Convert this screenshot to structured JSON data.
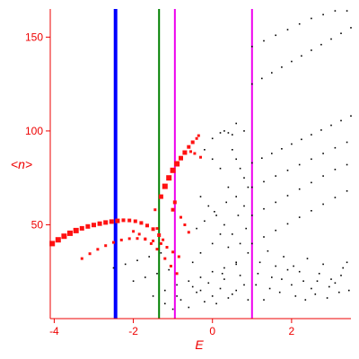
{
  "chart_data": {
    "type": "scatter",
    "title": "",
    "xlabel": "E",
    "ylabel": "<n>",
    "xlim": [
      -4.1,
      3.5
    ],
    "ylim": [
      0,
      165
    ],
    "xticks": [
      -4,
      -2,
      0,
      2
    ],
    "xtick_labels": [
      "-4",
      "-2",
      "0",
      "2"
    ],
    "yticks": [
      50,
      100,
      150
    ],
    "ytick_labels": [
      "50",
      "100",
      "150"
    ],
    "grid": false,
    "legend": "none",
    "colors": {
      "axes": "#ee0000",
      "black_points": "#000000",
      "red_points": "#ff1111"
    },
    "vertical_lines": [
      {
        "x": -2.45,
        "color": "#0000ff",
        "width": "thick"
      },
      {
        "x": -1.35,
        "color": "#008000",
        "width": "normal"
      },
      {
        "x": -0.95,
        "color": "#ee00ee",
        "width": "normal"
      },
      {
        "x": 1.0,
        "color": "#ee00ee",
        "width": "normal"
      }
    ],
    "series": [
      {
        "color": "#ff1111",
        "marker": "square",
        "points": [
          [
            -4.05,
            40.0,
            6
          ],
          [
            -3.9,
            42.0,
            6
          ],
          [
            -3.75,
            43.9,
            6
          ],
          [
            -3.6,
            45.5,
            6
          ],
          [
            -3.45,
            46.9,
            6
          ],
          [
            -3.3,
            48.1,
            5
          ],
          [
            -3.15,
            49.1,
            5
          ],
          [
            -3.0,
            49.9,
            5
          ],
          [
            -2.85,
            50.6,
            5
          ],
          [
            -2.7,
            51.2,
            5
          ],
          [
            -2.55,
            51.7,
            5
          ],
          [
            -2.4,
            52.1,
            5
          ],
          [
            -2.25,
            52.4,
            4
          ],
          [
            -2.1,
            52.3,
            4
          ],
          [
            -1.95,
            51.9,
            4
          ],
          [
            -1.8,
            51.0,
            4
          ],
          [
            -1.65,
            49.6,
            4
          ],
          [
            -1.5,
            47.7,
            4
          ],
          [
            -1.35,
            44.5,
            4
          ],
          [
            -1.25,
            42.0,
            3
          ],
          [
            -3.3,
            32.0,
            3
          ],
          [
            -3.1,
            34.6,
            3
          ],
          [
            -2.9,
            36.9,
            3
          ],
          [
            -2.7,
            38.9,
            3
          ],
          [
            -2.5,
            40.6,
            3
          ],
          [
            -2.3,
            41.9,
            3
          ],
          [
            -2.1,
            42.6,
            3
          ],
          [
            -1.9,
            42.7,
            3
          ],
          [
            -1.7,
            42.3,
            3
          ],
          [
            -1.5,
            41.4,
            3
          ],
          [
            -1.3,
            40.0,
            3
          ],
          [
            -1.15,
            38.0,
            3
          ],
          [
            -1.0,
            35.5,
            3
          ],
          [
            -0.85,
            33.0,
            3
          ],
          [
            -2.0,
            46.5,
            3
          ],
          [
            -1.85,
            45.0,
            3
          ],
          [
            -1.7,
            42.5,
            3
          ],
          [
            -1.55,
            40.0,
            3
          ],
          [
            -1.4,
            37.0,
            3
          ],
          [
            -1.2,
            32.0,
            3
          ],
          [
            -1.05,
            28.0,
            3
          ],
          [
            -0.9,
            24.0,
            3
          ],
          [
            -1.3,
            65.0,
            5
          ],
          [
            -1.2,
            70.5,
            6
          ],
          [
            -1.1,
            75.0,
            6
          ],
          [
            -1.0,
            79.0,
            6
          ],
          [
            -0.9,
            82.5,
            6
          ],
          [
            -0.8,
            85.5,
            5
          ],
          [
            -0.7,
            88.5,
            5
          ],
          [
            -0.6,
            91.5,
            4
          ],
          [
            -0.5,
            94.0,
            4
          ],
          [
            -0.4,
            96.0,
            3
          ],
          [
            -0.35,
            97.5,
            3
          ],
          [
            -0.55,
            89.0,
            3
          ],
          [
            -0.45,
            88.0,
            3
          ],
          [
            -0.3,
            86.0,
            3
          ],
          [
            -1.0,
            58.0,
            4
          ],
          [
            -0.95,
            62.0,
            4
          ],
          [
            -0.8,
            54.0,
            3
          ],
          [
            -0.7,
            50.0,
            3
          ],
          [
            -0.6,
            46.0,
            3
          ],
          [
            -1.4,
            48.0,
            3
          ],
          [
            -1.45,
            58.0,
            3
          ]
        ]
      },
      {
        "color": "#000000",
        "marker": "dot",
        "points": [
          [
            1.0,
            83.0
          ],
          [
            1.25,
            85.5
          ],
          [
            1.5,
            88.0
          ],
          [
            1.75,
            90.5
          ],
          [
            2.0,
            93.0
          ],
          [
            2.25,
            95.5
          ],
          [
            2.5,
            98.0
          ],
          [
            2.75,
            100.5
          ],
          [
            3.0,
            103.0
          ],
          [
            3.25,
            105.5
          ],
          [
            3.5,
            108.0
          ],
          [
            1.0,
            125.0
          ],
          [
            1.25,
            128.0
          ],
          [
            1.5,
            131.0
          ],
          [
            1.75,
            134.0
          ],
          [
            2.0,
            137.0
          ],
          [
            2.25,
            140.0
          ],
          [
            2.5,
            143.0
          ],
          [
            2.75,
            146.0
          ],
          [
            3.0,
            149.0
          ],
          [
            3.25,
            152.0
          ],
          [
            3.5,
            155.0
          ],
          [
            1.0,
            145.0
          ],
          [
            1.3,
            148.0
          ],
          [
            1.6,
            151.0
          ],
          [
            1.9,
            154.0
          ],
          [
            2.2,
            157.0
          ],
          [
            2.5,
            160.0
          ],
          [
            2.8,
            162.0
          ],
          [
            3.1,
            164.0
          ],
          [
            3.4,
            164.0
          ],
          [
            1.0,
            70.0
          ],
          [
            1.3,
            73.0
          ],
          [
            1.6,
            76.0
          ],
          [
            1.9,
            79.0
          ],
          [
            2.2,
            82.0
          ],
          [
            2.5,
            85.0
          ],
          [
            2.8,
            88.0
          ],
          [
            3.1,
            91.0
          ],
          [
            3.4,
            94.0
          ],
          [
            1.0,
            55.0
          ],
          [
            1.3,
            58.5
          ],
          [
            1.6,
            62.0
          ],
          [
            1.9,
            65.5
          ],
          [
            2.2,
            69.0
          ],
          [
            2.5,
            72.5
          ],
          [
            2.8,
            76.0
          ],
          [
            3.1,
            79.5
          ],
          [
            3.4,
            82.0
          ],
          [
            1.0,
            40.0
          ],
          [
            1.3,
            43.5
          ],
          [
            1.6,
            47.0
          ],
          [
            1.9,
            50.5
          ],
          [
            2.2,
            54.0
          ],
          [
            2.5,
            57.5
          ],
          [
            2.8,
            61.0
          ],
          [
            3.1,
            64.5
          ],
          [
            3.4,
            68.0
          ],
          [
            0.0,
            96.0
          ],
          [
            0.3,
            100.0
          ],
          [
            0.6,
            104.0
          ],
          [
            0.8,
            100.0
          ],
          [
            0.5,
            98.0
          ],
          [
            0.2,
            99.0
          ],
          [
            0.4,
            99.0
          ],
          [
            0.6,
            85.0
          ],
          [
            0.7,
            80.0
          ],
          [
            0.8,
            75.0
          ],
          [
            0.9,
            70.0
          ],
          [
            0.5,
            90.0
          ],
          [
            -0.2,
            90.0
          ],
          [
            0.0,
            85.0
          ],
          [
            0.2,
            80.0
          ],
          [
            0.4,
            70.0
          ],
          [
            0.6,
            65.0
          ],
          [
            0.8,
            60.0
          ],
          [
            -0.3,
            65.0
          ],
          [
            -0.1,
            60.0
          ],
          [
            0.1,
            55.0
          ],
          [
            0.3,
            50.0
          ],
          [
            0.5,
            45.0
          ],
          [
            0.7,
            40.0
          ],
          [
            0.9,
            35.0
          ],
          [
            -0.5,
            30.0
          ],
          [
            -0.3,
            35.0
          ],
          [
            0.0,
            40.0
          ],
          [
            0.2,
            45.0
          ],
          [
            0.4,
            38.0
          ],
          [
            0.6,
            30.0
          ],
          [
            -2.5,
            27.0
          ],
          [
            -2.2,
            29.0
          ],
          [
            -1.9,
            31.0
          ],
          [
            -1.6,
            33.0
          ],
          [
            -1.3,
            35.0
          ],
          [
            -2.0,
            20.0
          ],
          [
            -1.7,
            22.0
          ],
          [
            -1.4,
            24.0
          ],
          [
            -1.1,
            26.0
          ],
          [
            -1.5,
            12.0
          ],
          [
            -1.2,
            15.0
          ],
          [
            -0.9,
            18.0
          ],
          [
            -0.6,
            20.0
          ],
          [
            -0.3,
            22.0
          ],
          [
            0.0,
            25.0
          ],
          [
            0.3,
            27.0
          ],
          [
            0.6,
            29.0
          ],
          [
            -1.2,
            8.0
          ],
          [
            -1.0,
            5.0
          ],
          [
            -0.8,
            10.0
          ],
          [
            -0.6,
            6.0
          ],
          [
            -0.4,
            14.0
          ],
          [
            -0.2,
            9.0
          ],
          [
            0.0,
            12.0
          ],
          [
            0.2,
            16.0
          ],
          [
            0.4,
            11.0
          ],
          [
            0.6,
            15.0
          ],
          [
            0.8,
            18.0
          ],
          [
            -0.9,
            12.0
          ],
          [
            -0.5,
            17.0
          ],
          [
            -0.1,
            19.0
          ],
          [
            0.3,
            21.0
          ],
          [
            0.7,
            23.0
          ],
          [
            0.1,
            8.0
          ],
          [
            0.5,
            13.0
          ],
          [
            0.9,
            10.0
          ],
          [
            -0.3,
            15.0
          ],
          [
            0.25,
            24.0
          ],
          [
            1.1,
            18.0
          ],
          [
            1.3,
            10.0
          ],
          [
            1.5,
            22.0
          ],
          [
            1.7,
            14.0
          ],
          [
            1.9,
            26.0
          ],
          [
            2.1,
            12.0
          ],
          [
            2.3,
            20.0
          ],
          [
            2.5,
            16.0
          ],
          [
            2.7,
            24.0
          ],
          [
            2.9,
            11.0
          ],
          [
            3.1,
            19.0
          ],
          [
            3.3,
            27.0
          ],
          [
            3.45,
            15.0
          ],
          [
            1.2,
            30.0
          ],
          [
            1.4,
            36.0
          ],
          [
            1.6,
            28.0
          ],
          [
            1.8,
            33.0
          ],
          [
            2.0,
            18.0
          ],
          [
            2.2,
            25.0
          ],
          [
            2.4,
            32.0
          ],
          [
            2.6,
            13.0
          ],
          [
            2.8,
            29.0
          ],
          [
            3.0,
            21.0
          ],
          [
            3.2,
            14.0
          ],
          [
            3.4,
            30.0
          ],
          [
            1.15,
            24.0
          ],
          [
            1.45,
            16.0
          ],
          [
            1.75,
            21.0
          ],
          [
            2.05,
            28.0
          ],
          [
            2.35,
            10.0
          ],
          [
            2.65,
            20.0
          ],
          [
            2.95,
            17.0
          ],
          [
            3.25,
            23.0
          ],
          [
            -0.4,
            48.0
          ],
          [
            -0.2,
            52.0
          ],
          [
            0.05,
            57.0
          ],
          [
            0.35,
            62.0
          ],
          [
            0.65,
            55.0
          ],
          [
            0.85,
            48.0
          ]
        ]
      }
    ]
  }
}
